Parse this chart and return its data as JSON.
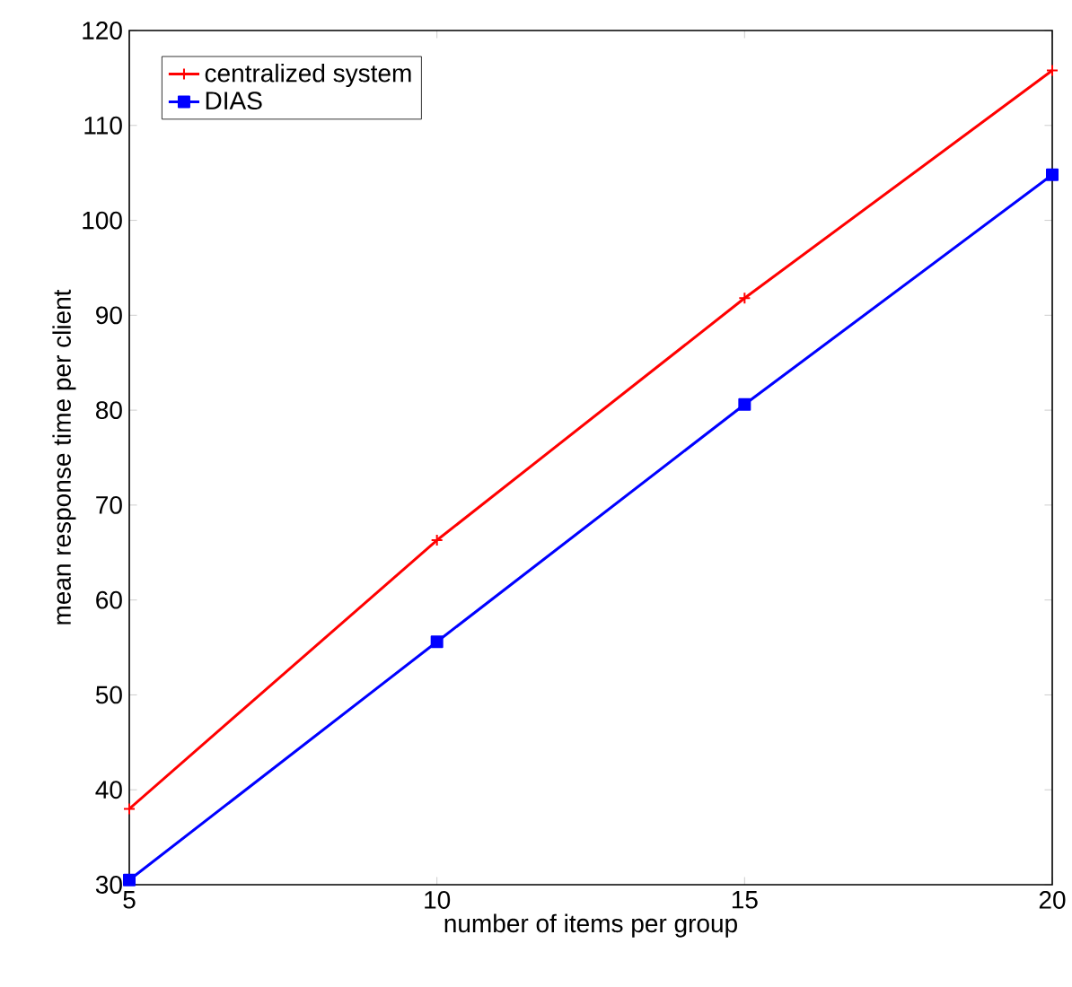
{
  "chart_data": {
    "type": "line",
    "xlabel": "number of items per group",
    "ylabel": "mean response time per client",
    "x": [
      5,
      10,
      15,
      20
    ],
    "xlim": [
      5,
      20
    ],
    "xticks": [
      5,
      10,
      15,
      20
    ],
    "ylim": [
      30,
      120
    ],
    "yticks": [
      30,
      40,
      50,
      60,
      70,
      80,
      90,
      100,
      110,
      120
    ],
    "series": [
      {
        "name": "centralized system",
        "color": "#ff0000",
        "marker": "cross",
        "values": [
          38,
          66.3,
          91.8,
          115.8
        ]
      },
      {
        "name": "DIAS",
        "color": "#0000ff",
        "marker": "square",
        "values": [
          30.5,
          55.6,
          80.6,
          104.8
        ]
      }
    ],
    "legend": "top left",
    "grid": false,
    "line_style": "solid"
  }
}
